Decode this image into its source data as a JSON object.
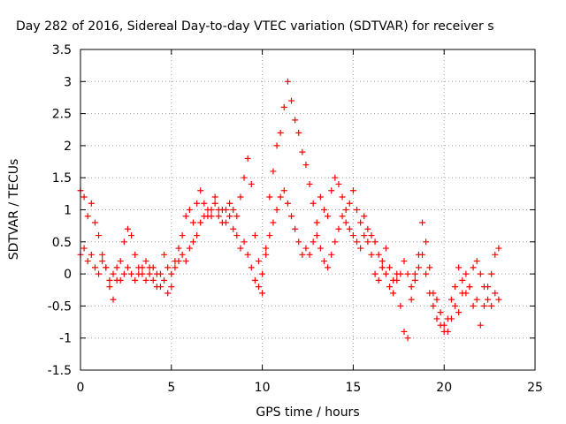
{
  "chart_data": {
    "type": "scatter",
    "title": "Day 282 of 2016, Sidereal Day-to-day VTEC variation (SDTVAR) for receiver s",
    "xlabel": "GPS time / hours",
    "ylabel": "SDTVAR / TECUs",
    "xlim": [
      0,
      25
    ],
    "ylim": [
      -1.5,
      3.5
    ],
    "xticks": [
      "0",
      "5",
      "10",
      "15",
      "20",
      "25"
    ],
    "yticks": [
      "-1.5",
      "-1",
      "-0.5",
      "0",
      "0.5",
      "1",
      "1.5",
      "2",
      "2.5",
      "3",
      "3.5"
    ],
    "grid": true,
    "marker": "plus",
    "color": "#ff0000",
    "series": [
      {
        "x": [
          0.0,
          0.2,
          0.4,
          0.6,
          0.8,
          1.0,
          1.2,
          1.4,
          1.6,
          1.8,
          2.0,
          2.2,
          2.4,
          2.6,
          2.8,
          3.0,
          3.2,
          3.4,
          3.6,
          3.8,
          4.0,
          4.2,
          4.4,
          4.6,
          4.8,
          5.0,
          5.2,
          5.4,
          5.6,
          5.8,
          6.0,
          6.2,
          6.4,
          6.6,
          6.8,
          7.0,
          7.2,
          7.4,
          7.6,
          7.8,
          8.0,
          8.2,
          8.4,
          8.6,
          8.8,
          9.0,
          9.2,
          9.4,
          9.6,
          9.8,
          10.0,
          10.2,
          10.4,
          10.6,
          10.8,
          11.0,
          11.2,
          11.4,
          11.6,
          11.8,
          12.0,
          12.2,
          12.4,
          12.6,
          12.8,
          13.0,
          13.2,
          13.4,
          13.6,
          13.8,
          14.0,
          14.2,
          14.4,
          14.6,
          14.8,
          15.0,
          15.2,
          15.4,
          15.6,
          15.8,
          16.0,
          16.2,
          16.4,
          16.6,
          16.8,
          17.0,
          17.2,
          17.4,
          17.6,
          17.8,
          18.0,
          18.2,
          18.4,
          18.6,
          18.8,
          19.0,
          19.2,
          19.4,
          19.6,
          19.8,
          20.0,
          20.2,
          20.4,
          20.6,
          20.8,
          21.0,
          21.2,
          21.4,
          21.6,
          21.8,
          22.0,
          22.2,
          22.4,
          22.6,
          22.8,
          23.0
        ],
        "y": [
          1.3,
          1.2,
          0.9,
          1.1,
          0.8,
          0.6,
          0.3,
          0.1,
          -0.2,
          -0.4,
          -0.1,
          0.2,
          0.5,
          0.7,
          0.6,
          0.3,
          0.1,
          0.0,
          0.2,
          0.1,
          -0.1,
          -0.2,
          0.0,
          0.3,
          0.1,
          -0.2,
          0.2,
          0.4,
          0.6,
          0.9,
          1.0,
          0.8,
          1.1,
          1.3,
          1.1,
          0.9,
          1.0,
          1.2,
          0.9,
          1.0,
          0.8,
          1.1,
          1.0,
          0.9,
          1.2,
          1.5,
          1.8,
          1.4,
          0.6,
          0.2,
          -0.3,
          0.4,
          1.2,
          1.6,
          2.0,
          2.2,
          2.6,
          3.0,
          2.7,
          2.4,
          2.2,
          1.9,
          1.7,
          1.4,
          1.1,
          0.8,
          1.2,
          1.0,
          0.9,
          1.3,
          1.5,
          1.4,
          1.2,
          1.0,
          1.1,
          1.3,
          1.0,
          0.8,
          0.9,
          0.7,
          0.6,
          0.5,
          0.3,
          0.2,
          0.4,
          0.1,
          -0.1,
          0.0,
          -0.5,
          -0.9,
          -1.0,
          -0.4,
          0.0,
          0.3,
          0.8,
          0.5,
          0.1,
          -0.3,
          -0.4,
          -0.6,
          -0.8,
          -0.9,
          -0.7,
          -0.5,
          -0.6,
          -0.3,
          0.0,
          -0.2,
          -0.5,
          -0.4,
          -0.8,
          -0.5,
          -0.2,
          0.0,
          0.3,
          0.4
        ]
      },
      {
        "x": [
          0.0,
          0.2,
          0.4,
          0.6,
          0.8,
          1.0,
          1.2,
          1.4,
          1.6,
          1.8,
          2.0,
          2.2,
          2.4,
          2.6,
          2.8,
          3.0,
          3.2,
          3.4,
          3.6,
          3.8,
          4.0,
          4.2,
          4.4,
          4.6,
          4.8,
          5.0,
          5.2,
          5.4,
          5.6,
          5.8,
          6.0,
          6.2,
          6.4,
          6.6,
          6.8,
          7.0,
          7.2,
          7.4,
          7.6,
          7.8,
          8.0,
          8.2,
          8.4,
          8.6,
          8.8,
          9.0,
          9.2,
          9.4,
          9.6,
          9.8,
          10.0,
          10.2,
          10.4,
          10.6,
          10.8,
          11.0,
          11.2,
          11.4,
          11.6,
          11.8,
          12.0,
          12.2,
          12.4,
          12.6,
          12.8,
          13.0,
          13.2,
          13.4,
          13.6,
          13.8,
          14.0,
          14.2,
          14.4,
          14.6,
          14.8,
          15.0,
          15.2,
          15.4,
          15.6,
          15.8,
          16.0,
          16.2,
          16.4,
          16.6,
          16.8,
          17.0,
          17.2,
          17.4,
          17.6,
          17.8,
          18.0,
          18.2,
          18.4,
          18.6,
          18.8,
          19.0,
          19.2,
          19.4,
          19.6,
          19.8,
          20.0,
          20.2,
          20.4,
          20.6,
          20.8,
          21.0,
          21.2,
          21.4,
          21.6,
          21.8,
          22.0,
          22.2,
          22.4,
          22.6,
          22.8,
          23.0
        ],
        "y": [
          0.3,
          0.4,
          0.2,
          0.3,
          0.1,
          0.0,
          0.2,
          0.1,
          -0.1,
          0.0,
          0.1,
          -0.1,
          0.0,
          0.1,
          0.0,
          -0.1,
          0.0,
          0.1,
          -0.1,
          0.0,
          0.1,
          0.0,
          -0.2,
          -0.1,
          -0.3,
          0.0,
          0.1,
          0.2,
          0.3,
          0.2,
          0.4,
          0.5,
          0.6,
          0.8,
          0.9,
          1.0,
          0.9,
          1.1,
          1.0,
          0.8,
          1.0,
          0.9,
          0.7,
          0.6,
          0.4,
          0.5,
          0.3,
          0.1,
          -0.1,
          -0.2,
          0.0,
          0.3,
          0.6,
          0.8,
          1.0,
          1.2,
          1.3,
          1.1,
          0.9,
          0.7,
          0.5,
          0.3,
          0.4,
          0.3,
          0.5,
          0.6,
          0.4,
          0.2,
          0.1,
          0.3,
          0.5,
          0.7,
          0.9,
          0.8,
          0.7,
          0.6,
          0.5,
          0.4,
          0.6,
          0.5,
          0.3,
          0.0,
          -0.1,
          0.1,
          0.0,
          -0.2,
          -0.3,
          -0.1,
          0.0,
          0.2,
          0.0,
          -0.2,
          -0.1,
          0.1,
          0.3,
          0.0,
          -0.3,
          -0.5,
          -0.7,
          -0.8,
          -0.9,
          -0.7,
          -0.4,
          -0.2,
          0.1,
          -0.1,
          -0.3,
          -0.2,
          0.1,
          0.2,
          0.0,
          -0.2,
          -0.4,
          -0.5,
          -0.3,
          -0.4
        ]
      }
    ]
  }
}
